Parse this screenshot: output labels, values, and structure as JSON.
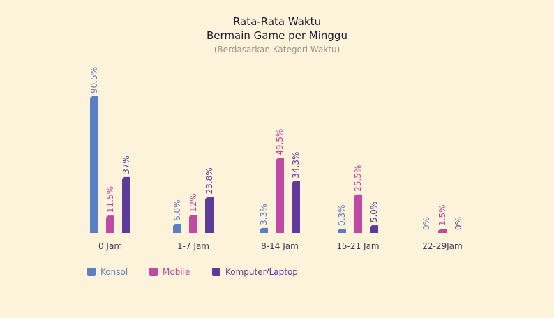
{
  "chart_data": {
    "type": "bar",
    "title_line1": "Rata-Rata Waktu",
    "title_line2": "Bermain Game per Minggu",
    "subtitle": "(Berdasarkan Kategori Waktu)",
    "categories": [
      "0 Jam",
      "1-7 Jam",
      "8-14 Jam",
      "15-21 Jam",
      "22-29Jam"
    ],
    "series": [
      {
        "name": "Konsol",
        "color": "#5b7fc4",
        "values": [
          90.5,
          6.0,
          3.3,
          0.3,
          0
        ],
        "labels": [
          "90.5%",
          "6.0%",
          "3.3%",
          "0.3%",
          "0%"
        ]
      },
      {
        "name": "Mobile",
        "color": "#c04aa3",
        "values": [
          11.5,
          12,
          49.5,
          25.5,
          1.5
        ],
        "labels": [
          "11.5%",
          "12%",
          "49.5%",
          "25.5%",
          "1.5%"
        ]
      },
      {
        "name": "Komputer/Laptop",
        "color": "#5e3b98",
        "values": [
          37,
          23.8,
          34.3,
          5.0,
          0
        ],
        "labels": [
          "37%",
          "23.8%",
          "34.3%",
          "5.0%",
          "0%"
        ]
      }
    ],
    "ylim": [
      0,
      90.5
    ],
    "grid": false,
    "legend_position": "bottom-left"
  }
}
